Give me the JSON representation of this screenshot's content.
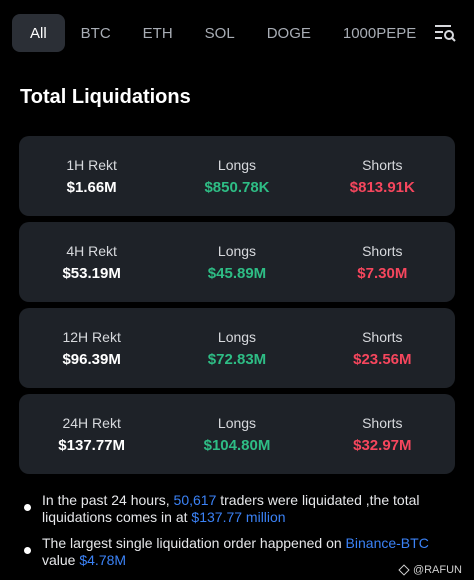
{
  "tabs": [
    {
      "label": "All",
      "active": true
    },
    {
      "label": "BTC",
      "active": false
    },
    {
      "label": "ETH",
      "active": false
    },
    {
      "label": "SOL",
      "active": false
    },
    {
      "label": "DOGE",
      "active": false
    },
    {
      "label": "1000PEPE",
      "active": false
    }
  ],
  "filter_icon": "filter-search-icon",
  "title": "Total Liquidations",
  "cards": [
    {
      "period": "1H Rekt",
      "total": "$1.66M",
      "longs_label": "Longs",
      "longs": "$850.78K",
      "shorts_label": "Shorts",
      "shorts": "$813.91K"
    },
    {
      "period": "4H Rekt",
      "total": "$53.19M",
      "longs_label": "Longs",
      "longs": "$45.89M",
      "shorts_label": "Shorts",
      "shorts": "$7.30M"
    },
    {
      "period": "12H Rekt",
      "total": "$96.39M",
      "longs_label": "Longs",
      "longs": "$72.83M",
      "shorts_label": "Shorts",
      "shorts": "$23.56M"
    },
    {
      "period": "24H Rekt",
      "total": "$137.77M",
      "longs_label": "Longs",
      "longs": "$104.80M",
      "shorts_label": "Shorts",
      "shorts": "$32.97M"
    }
  ],
  "notes": {
    "n1": {
      "a": "In the past 24 hours, ",
      "b": "50,617",
      "c": " traders were liquidated ,the total liquidations comes in at ",
      "d": "$137.77 million"
    },
    "n2": {
      "a": "The largest single liquidation order happened on ",
      "b": "Binance-BTC",
      "c": " value ",
      "d": "$4.78M"
    }
  },
  "colors": {
    "long": "#2ebd85",
    "short": "#f6465d",
    "highlight": "#3b82f6",
    "card": "#1e2228"
  },
  "watermark": "@RAFUN"
}
